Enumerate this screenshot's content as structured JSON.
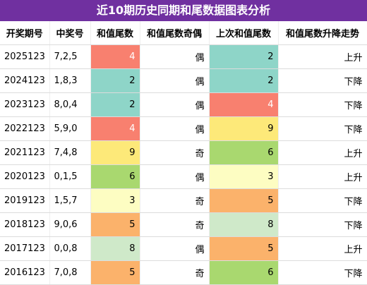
{
  "header": {
    "title": "近10期历史同期和尾数据图表分析"
  },
  "table": {
    "columns": [
      "开奖期号",
      "中奖号",
      "和值尾数",
      "和值尾数奇偶",
      "上次和值尾数",
      "和值尾数升降走势"
    ],
    "rows": [
      [
        "2025123",
        "7,2,5",
        "4",
        "偶",
        "2",
        "上升"
      ],
      [
        "2024123",
        "1,8,3",
        "2",
        "偶",
        "2",
        "下降"
      ],
      [
        "2023123",
        "8,0,4",
        "2",
        "偶",
        "4",
        "下降"
      ],
      [
        "2022123",
        "5,9,0",
        "4",
        "偶",
        "9",
        "下降"
      ],
      [
        "2021123",
        "7,4,8",
        "9",
        "奇",
        "6",
        "上升"
      ],
      [
        "2020123",
        "0,1,5",
        "6",
        "偶",
        "3",
        "上升"
      ],
      [
        "2019123",
        "1,5,7",
        "3",
        "奇",
        "5",
        "下降"
      ],
      [
        "2018123",
        "9,0,6",
        "5",
        "奇",
        "8",
        "下降"
      ],
      [
        "2017123",
        "0,0,8",
        "8",
        "偶",
        "5",
        "上升"
      ],
      [
        "2016123",
        "7,0,8",
        "5",
        "奇",
        "6",
        "下降"
      ]
    ],
    "cell_colors": {
      "2": {
        "fill": "#8ed5c8",
        "text": "#000000"
      },
      "3": {
        "fill": "#fdfdc2",
        "text": "#000000"
      },
      "4": {
        "fill": "#f8806f",
        "text": "#ffffff"
      },
      "5": {
        "fill": "#fbb26b",
        "text": "#000000"
      },
      "6": {
        "fill": "#a9d86f",
        "text": "#000000"
      },
      "8": {
        "fill": "#cfe9c9",
        "text": "#000000"
      },
      "9": {
        "fill": "#fde979",
        "text": "#000000"
      }
    }
  }
}
